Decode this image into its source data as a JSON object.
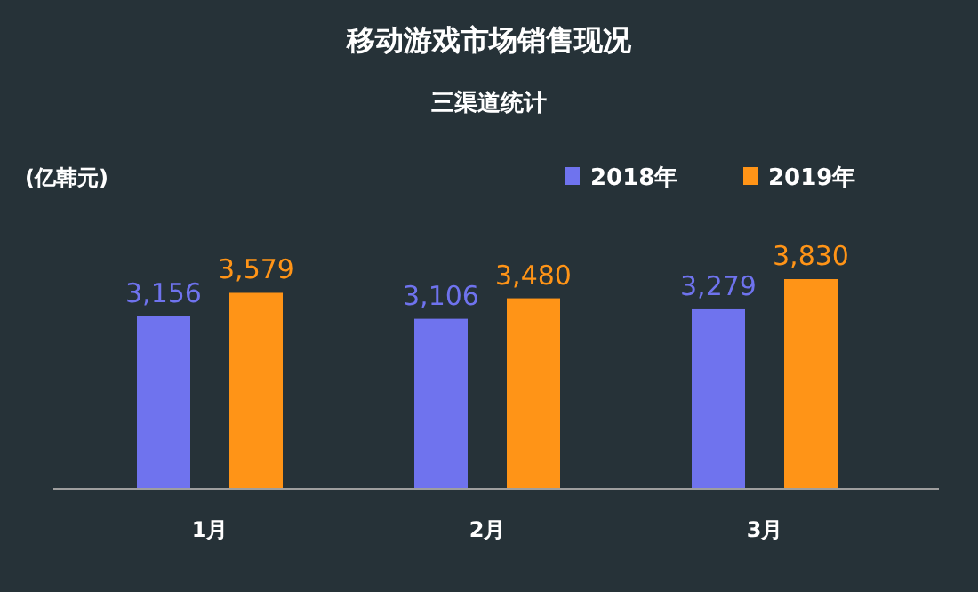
{
  "chart_data": {
    "type": "bar",
    "title": "移动游戏市场销售现况",
    "subtitle": "三渠道统计",
    "ylabel": "(亿韩元)",
    "categories": [
      "1月",
      "2月",
      "3月"
    ],
    "series": [
      {
        "name": "2018年",
        "color": "#6f73ee",
        "values": [
          3156,
          3106,
          3279
        ],
        "value_labels": [
          "3,156",
          "3,106",
          "3,279"
        ]
      },
      {
        "name": "2019年",
        "color": "#ff9417",
        "values": [
          3579,
          3480,
          3830
        ],
        "value_labels": [
          "3,579",
          "3,480",
          "3,830"
        ]
      }
    ],
    "legend": "top right"
  }
}
